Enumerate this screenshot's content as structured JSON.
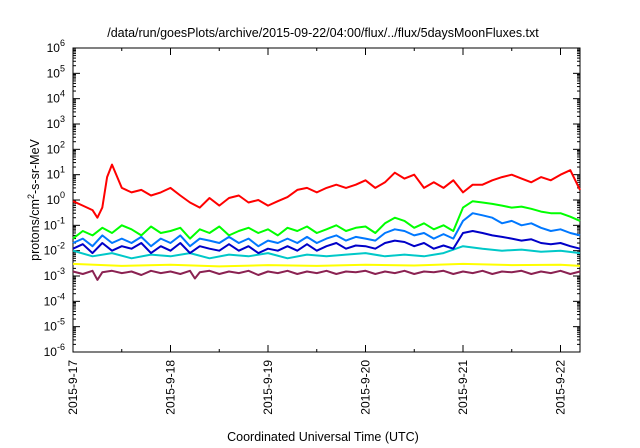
{
  "chart_data": {
    "type": "line",
    "title": "/data/run/goesPlots/archive/2015-09-22/04:00/flux/../flux/5daysMoonFluxes.txt",
    "xlabel": "Coordinated Universal Time (UTC)",
    "ylabel": "protons/cm",
    "ylabel_sup": "2",
    "ylabel_rest": "-s-sr-MeV",
    "y_scale": "log",
    "ylim": [
      1e-06,
      1000000.0
    ],
    "xlim": [
      0,
      5.2
    ],
    "x_unit": "days since 2015-9-17 00:00 UTC",
    "y_ticks": [
      {
        "value": -6,
        "base": "10",
        "exp": "-6"
      },
      {
        "value": -5,
        "base": "10",
        "exp": "-5"
      },
      {
        "value": -4,
        "base": "10",
        "exp": "-4"
      },
      {
        "value": -3,
        "base": "10",
        "exp": "-3"
      },
      {
        "value": -2,
        "base": "10",
        "exp": "-2"
      },
      {
        "value": -1,
        "base": "10",
        "exp": "-1"
      },
      {
        "value": 0,
        "base": "10",
        "exp": "0"
      },
      {
        "value": 1,
        "base": "10",
        "exp": "1"
      },
      {
        "value": 2,
        "base": "10",
        "exp": "2"
      },
      {
        "value": 3,
        "base": "10",
        "exp": "3"
      },
      {
        "value": 4,
        "base": "10",
        "exp": "4"
      },
      {
        "value": 5,
        "base": "10",
        "exp": "5"
      },
      {
        "value": 6,
        "base": "10",
        "exp": "6"
      }
    ],
    "x_ticks": [
      {
        "value": 0,
        "label": "2015-9-17"
      },
      {
        "value": 1,
        "label": "2015-9-18"
      },
      {
        "value": 2,
        "label": "2015-9-19"
      },
      {
        "value": 3,
        "label": "2015-9-20"
      },
      {
        "value": 4,
        "label": "2015-9-21"
      },
      {
        "value": 5,
        "label": "2015-9-22"
      }
    ],
    "grid": false,
    "series": [
      {
        "color": "#ff0000",
        "x": [
          0,
          0.1,
          0.2,
          0.25,
          0.3,
          0.35,
          0.4,
          0.5,
          0.6,
          0.7,
          0.8,
          0.9,
          1.0,
          1.1,
          1.2,
          1.3,
          1.4,
          1.5,
          1.6,
          1.7,
          1.8,
          1.9,
          2.0,
          2.1,
          2.2,
          2.3,
          2.4,
          2.5,
          2.6,
          2.7,
          2.8,
          2.9,
          3.0,
          3.1,
          3.2,
          3.3,
          3.4,
          3.5,
          3.6,
          3.7,
          3.8,
          3.9,
          4.0,
          4.1,
          4.2,
          4.3,
          4.4,
          4.5,
          4.6,
          4.7,
          4.8,
          4.9,
          5.0,
          5.1,
          5.2
        ],
        "y": [
          0.9,
          0.6,
          0.4,
          0.2,
          0.5,
          8,
          25,
          3,
          2,
          2.5,
          1.5,
          2,
          3,
          1.5,
          0.8,
          0.5,
          1.2,
          0.6,
          1.2,
          1.5,
          0.8,
          1.0,
          0.6,
          0.9,
          1.3,
          2.5,
          3,
          2,
          3,
          4,
          3,
          4,
          6,
          3,
          5,
          12,
          7,
          10,
          3,
          5,
          3,
          6,
          2,
          4,
          4,
          6,
          8,
          10,
          7,
          5,
          8,
          6,
          10,
          15,
          2.5
        ]
      },
      {
        "color": "#00ff00",
        "x": [
          0,
          0.1,
          0.2,
          0.3,
          0.4,
          0.5,
          0.6,
          0.7,
          0.8,
          0.9,
          1.0,
          1.1,
          1.2,
          1.3,
          1.4,
          1.5,
          1.6,
          1.7,
          1.8,
          1.9,
          2.0,
          2.1,
          2.2,
          2.3,
          2.4,
          2.5,
          2.6,
          2.7,
          2.8,
          2.9,
          3.0,
          3.1,
          3.2,
          3.3,
          3.4,
          3.5,
          3.6,
          3.7,
          3.8,
          3.9,
          4.0,
          4.1,
          4.2,
          4.3,
          4.4,
          4.5,
          4.6,
          4.7,
          4.8,
          4.9,
          5.0,
          5.1,
          5.2
        ],
        "y": [
          0.03,
          0.06,
          0.04,
          0.08,
          0.05,
          0.1,
          0.07,
          0.04,
          0.09,
          0.05,
          0.06,
          0.08,
          0.03,
          0.07,
          0.05,
          0.09,
          0.04,
          0.06,
          0.08,
          0.05,
          0.07,
          0.04,
          0.08,
          0.06,
          0.09,
          0.05,
          0.07,
          0.1,
          0.06,
          0.08,
          0.09,
          0.05,
          0.12,
          0.2,
          0.15,
          0.08,
          0.12,
          0.07,
          0.1,
          0.06,
          0.5,
          0.9,
          0.8,
          0.7,
          0.6,
          0.5,
          0.55,
          0.45,
          0.35,
          0.3,
          0.3,
          0.22,
          0.15
        ]
      },
      {
        "color": "#00c8c8",
        "x": [
          0,
          0.2,
          0.4,
          0.6,
          0.8,
          1.0,
          1.2,
          1.4,
          1.6,
          1.8,
          2.0,
          2.2,
          2.4,
          2.6,
          2.8,
          3.0,
          3.2,
          3.4,
          3.6,
          3.8,
          4.0,
          4.2,
          4.4,
          4.6,
          4.8,
          5.0,
          5.2
        ],
        "y": [
          0.01,
          0.006,
          0.008,
          0.005,
          0.007,
          0.006,
          0.008,
          0.005,
          0.007,
          0.006,
          0.008,
          0.005,
          0.007,
          0.006,
          0.007,
          0.008,
          0.006,
          0.007,
          0.006,
          0.008,
          0.015,
          0.012,
          0.01,
          0.011,
          0.009,
          0.01,
          0.008
        ]
      },
      {
        "color": "#0078ff",
        "x": [
          0,
          0.1,
          0.2,
          0.3,
          0.4,
          0.5,
          0.6,
          0.7,
          0.8,
          0.9,
          1.0,
          1.1,
          1.2,
          1.3,
          1.4,
          1.5,
          1.6,
          1.7,
          1.8,
          1.9,
          2.0,
          2.1,
          2.2,
          2.3,
          2.4,
          2.5,
          2.6,
          2.7,
          2.8,
          2.9,
          3.0,
          3.1,
          3.2,
          3.3,
          3.4,
          3.5,
          3.6,
          3.7,
          3.8,
          3.9,
          4.0,
          4.1,
          4.2,
          4.3,
          4.4,
          4.5,
          4.6,
          4.7,
          4.8,
          4.9,
          5.0,
          5.1,
          5.2
        ],
        "y": [
          0.02,
          0.03,
          0.015,
          0.04,
          0.02,
          0.03,
          0.02,
          0.035,
          0.015,
          0.03,
          0.02,
          0.04,
          0.015,
          0.03,
          0.025,
          0.02,
          0.035,
          0.02,
          0.03,
          0.015,
          0.025,
          0.02,
          0.03,
          0.02,
          0.035,
          0.02,
          0.03,
          0.04,
          0.025,
          0.035,
          0.03,
          0.025,
          0.05,
          0.07,
          0.06,
          0.04,
          0.05,
          0.03,
          0.045,
          0.03,
          0.15,
          0.3,
          0.25,
          0.2,
          0.12,
          0.15,
          0.1,
          0.12,
          0.08,
          0.06,
          0.07,
          0.05,
          0.04
        ]
      },
      {
        "color": "#0000c8",
        "x": [
          0,
          0.1,
          0.2,
          0.3,
          0.4,
          0.5,
          0.6,
          0.7,
          0.8,
          0.9,
          1.0,
          1.1,
          1.2,
          1.3,
          1.4,
          1.5,
          1.6,
          1.7,
          1.8,
          1.9,
          2.0,
          2.1,
          2.2,
          2.3,
          2.4,
          2.5,
          2.6,
          2.7,
          2.8,
          2.9,
          3.0,
          3.1,
          3.2,
          3.3,
          3.4,
          3.5,
          3.6,
          3.7,
          3.8,
          3.9,
          4.0,
          4.1,
          4.2,
          4.3,
          4.4,
          4.5,
          4.6,
          4.7,
          4.8,
          4.9,
          5.0,
          5.1,
          5.2
        ],
        "y": [
          0.012,
          0.018,
          0.008,
          0.02,
          0.01,
          0.015,
          0.012,
          0.02,
          0.008,
          0.015,
          0.01,
          0.02,
          0.008,
          0.015,
          0.012,
          0.01,
          0.018,
          0.01,
          0.015,
          0.008,
          0.012,
          0.01,
          0.015,
          0.01,
          0.018,
          0.01,
          0.015,
          0.02,
          0.012,
          0.016,
          0.015,
          0.012,
          0.02,
          0.025,
          0.022,
          0.015,
          0.02,
          0.012,
          0.016,
          0.012,
          0.05,
          0.06,
          0.05,
          0.04,
          0.035,
          0.03,
          0.025,
          0.028,
          0.02,
          0.018,
          0.02,
          0.015,
          0.012
        ]
      },
      {
        "color": "#ffff00",
        "x": [
          0,
          0.5,
          1.0,
          1.5,
          2.0,
          2.5,
          3.0,
          3.5,
          4.0,
          4.5,
          5.0,
          5.2
        ],
        "y": [
          0.003,
          0.0025,
          0.0028,
          0.0024,
          0.0027,
          0.0025,
          0.0028,
          0.0026,
          0.003,
          0.0027,
          0.0028,
          0.0025
        ]
      },
      {
        "color": "#8b2252",
        "x": [
          0,
          0.1,
          0.2,
          0.25,
          0.3,
          0.4,
          0.5,
          0.6,
          0.7,
          0.8,
          0.9,
          1.0,
          1.1,
          1.2,
          1.25,
          1.3,
          1.4,
          1.5,
          1.6,
          1.7,
          1.8,
          1.9,
          2.0,
          2.1,
          2.2,
          2.3,
          2.4,
          2.5,
          2.6,
          2.7,
          2.8,
          2.9,
          3.0,
          3.1,
          3.2,
          3.3,
          3.4,
          3.5,
          3.6,
          3.7,
          3.8,
          3.9,
          4.0,
          4.1,
          4.2,
          4.3,
          4.4,
          4.5,
          4.6,
          4.7,
          4.8,
          4.9,
          5.0,
          5.1,
          5.2
        ],
        "y": [
          0.0015,
          0.0012,
          0.0016,
          0.0007,
          0.0014,
          0.0016,
          0.0013,
          0.0015,
          0.0011,
          0.0016,
          0.0013,
          0.0015,
          0.0012,
          0.0016,
          0.0008,
          0.0014,
          0.0016,
          0.0012,
          0.0015,
          0.0013,
          0.0016,
          0.0011,
          0.0015,
          0.0013,
          0.0016,
          0.0012,
          0.0015,
          0.0013,
          0.0016,
          0.0012,
          0.0015,
          0.0014,
          0.0016,
          0.0012,
          0.0015,
          0.0013,
          0.0016,
          0.0012,
          0.0015,
          0.0014,
          0.0016,
          0.0012,
          0.0015,
          0.0013,
          0.0016,
          0.0012,
          0.0015,
          0.0014,
          0.0016,
          0.0012,
          0.0015,
          0.0013,
          0.0016,
          0.0012,
          0.0015
        ]
      }
    ]
  }
}
